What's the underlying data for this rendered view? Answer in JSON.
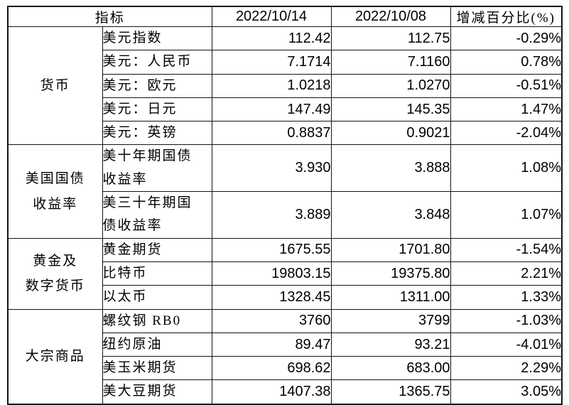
{
  "table": {
    "header": {
      "indicator": "指标",
      "col_current": "2022/10/14",
      "col_previous": "2022/10/08",
      "col_change": "增减百分比(%)"
    },
    "groups": [
      {
        "name": "货币",
        "rows": [
          {
            "label": "美元指数",
            "current": "112.42",
            "previous": "112.75",
            "change": "-0.29%"
          },
          {
            "label": "美元：人民币",
            "current": "7.1714",
            "previous": "7.1160",
            "change": "0.78%"
          },
          {
            "label": "美元：欧元",
            "current": "1.0218",
            "previous": "1.0270",
            "change": "-0.51%"
          },
          {
            "label": "美元：日元",
            "current": "147.49",
            "previous": "145.35",
            "change": "1.47%"
          },
          {
            "label": "美元：英镑",
            "current": "0.8837",
            "previous": "0.9021",
            "change": "-2.04%"
          }
        ]
      },
      {
        "name": "美国国债\n收益率",
        "rows": [
          {
            "label": "美十年期国债\n收益率",
            "current": "3.930",
            "previous": "3.888",
            "change": "1.08%"
          },
          {
            "label": "美三十年期国\n债收益率",
            "current": "3.889",
            "previous": "3.848",
            "change": "1.07%"
          }
        ]
      },
      {
        "name": "黄金及\n数字货币",
        "rows": [
          {
            "label": "黄金期货",
            "current": "1675.55",
            "previous": "1701.80",
            "change": "-1.54%"
          },
          {
            "label": "比特币",
            "current": "19803.15",
            "previous": "19375.80",
            "change": "2.21%"
          },
          {
            "label": "以太币",
            "current": "1328.45",
            "previous": "1311.00",
            "change": "1.33%"
          }
        ]
      },
      {
        "name": "大宗商品",
        "rows": [
          {
            "label": "螺纹钢 RB0",
            "current": "3760",
            "previous": "3799",
            "change": "-1.03%"
          },
          {
            "label": "纽约原油",
            "current": "89.47",
            "previous": "93.21",
            "change": "-4.01%"
          },
          {
            "label": "美玉米期货",
            "current": "698.62",
            "previous": "683.00",
            "change": "2.29%"
          },
          {
            "label": "美大豆期货",
            "current": "1407.38",
            "previous": "1365.75",
            "change": "3.05%"
          }
        ]
      }
    ],
    "colors": {
      "border": "#141414",
      "text": "#000000",
      "background": "#ffffff"
    }
  }
}
